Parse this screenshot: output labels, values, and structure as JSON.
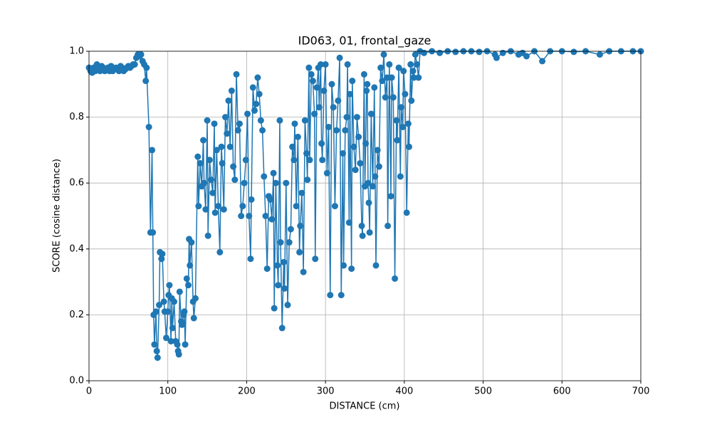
{
  "chart_data": {
    "type": "line",
    "title": "ID063, 01, frontal_gaze",
    "xlabel": "DISTANCE (cm)",
    "ylabel": "SCORE (cosine distance)",
    "color": "#1f77b4",
    "grid": true,
    "markers": true,
    "xlim": [
      0,
      700
    ],
    "xticks": [
      0,
      100,
      200,
      300,
      400,
      500,
      600,
      700
    ],
    "ylim": [
      0,
      1
    ],
    "yticks": [
      {
        "value": 0,
        "label": "0.0"
      },
      0.2,
      0.4,
      0.6,
      0.8,
      {
        "value": 1,
        "label": "1.0"
      }
    ],
    "x": [
      0,
      2,
      4,
      6,
      8,
      10,
      12,
      14,
      16,
      18,
      20,
      22,
      24,
      26,
      28,
      30,
      32,
      34,
      36,
      38,
      40,
      42,
      44,
      46,
      48,
      50,
      52,
      54,
      56,
      58,
      60,
      62,
      64,
      66,
      68,
      70,
      72,
      73,
      76,
      78,
      80,
      81,
      82,
      83,
      85,
      86,
      87,
      89,
      90,
      92,
      93,
      95,
      96,
      98,
      100,
      101,
      102,
      104,
      105,
      106,
      108,
      110,
      112,
      113,
      114,
      115,
      117,
      118,
      120,
      121,
      122,
      124,
      126,
      127,
      128,
      130,
      132,
      133,
      135,
      138,
      139,
      141,
      143,
      145,
      146,
      148,
      150,
      151,
      153,
      155,
      157,
      159,
      160,
      162,
      164,
      166,
      168,
      169,
      171,
      173,
      175,
      177,
      179,
      181,
      183,
      185,
      187,
      189,
      191,
      193,
      195,
      197,
      199,
      201,
      203,
      205,
      206,
      208,
      210,
      212,
      214,
      216,
      218,
      220,
      222,
      224,
      226,
      228,
      230,
      232,
      234,
      235,
      237,
      239,
      240,
      242,
      243,
      245,
      247,
      248,
      250,
      252,
      254,
      256,
      258,
      260,
      261,
      263,
      265,
      267,
      268,
      270,
      272,
      274,
      276,
      277,
      279,
      280,
      282,
      284,
      286,
      287,
      289,
      291,
      292,
      294,
      295,
      296,
      298,
      300,
      302,
      304,
      306,
      308,
      310,
      312,
      314,
      316,
      318,
      320,
      322,
      323,
      325,
      327,
      328,
      330,
      331,
      333,
      334,
      336,
      338,
      340,
      342,
      344,
      346,
      347,
      349,
      350,
      351,
      352,
      353,
      354,
      355,
      356,
      358,
      360,
      362,
      363,
      364,
      366,
      368,
      370,
      372,
      374,
      376,
      378,
      379,
      381,
      383,
      384,
      386,
      388,
      390,
      391,
      393,
      395,
      396,
      398,
      399,
      401,
      403,
      405,
      406,
      408,
      409,
      411,
      412,
      414,
      416,
      418,
      420,
      425,
      435,
      445,
      455,
      465,
      475,
      485,
      495,
      505,
      515,
      517,
      525,
      535,
      545,
      550,
      555,
      565,
      575,
      585,
      600,
      615,
      630,
      648,
      660,
      675,
      690,
      700
    ],
    "values": [
      0.95,
      0.94,
      0.935,
      0.95,
      0.94,
      0.96,
      0.945,
      0.94,
      0.955,
      0.95,
      0.94,
      0.945,
      0.95,
      0.94,
      0.955,
      0.94,
      0.945,
      0.95,
      0.945,
      0.94,
      0.955,
      0.95,
      0.94,
      0.945,
      0.95,
      0.955,
      0.95,
      0.955,
      0.96,
      0.96,
      0.98,
      0.99,
      0.985,
      0.99,
      0.97,
      0.96,
      0.91,
      0.95,
      0.77,
      0.45,
      0.7,
      0.45,
      0.2,
      0.11,
      0.21,
      0.09,
      0.07,
      0.23,
      0.39,
      0.37,
      0.385,
      0.24,
      0.21,
      0.13,
      0.21,
      0.26,
      0.29,
      0.12,
      0.25,
      0.16,
      0.24,
      0.12,
      0.11,
      0.09,
      0.08,
      0.27,
      0.18,
      0.17,
      0.2,
      0.21,
      0.11,
      0.31,
      0.29,
      0.43,
      0.35,
      0.42,
      0.24,
      0.19,
      0.25,
      0.68,
      0.53,
      0.66,
      0.59,
      0.73,
      0.6,
      0.52,
      0.79,
      0.44,
      0.67,
      0.61,
      0.57,
      0.78,
      0.51,
      0.7,
      0.53,
      0.39,
      0.71,
      0.66,
      0.52,
      0.8,
      0.75,
      0.85,
      0.71,
      0.88,
      0.65,
      0.61,
      0.93,
      0.76,
      0.78,
      0.5,
      0.53,
      0.6,
      0.67,
      0.81,
      0.5,
      0.37,
      0.55,
      0.89,
      0.82,
      0.84,
      0.92,
      0.87,
      0.79,
      0.76,
      0.62,
      0.5,
      0.34,
      0.56,
      0.55,
      0.49,
      0.63,
      0.22,
      0.6,
      0.35,
      0.29,
      0.79,
      0.42,
      0.16,
      0.36,
      0.28,
      0.6,
      0.23,
      0.42,
      0.46,
      0.71,
      0.67,
      0.78,
      0.53,
      0.74,
      0.39,
      0.47,
      0.57,
      0.33,
      0.79,
      0.69,
      0.61,
      0.95,
      0.67,
      0.93,
      0.91,
      0.81,
      0.37,
      0.89,
      0.95,
      0.83,
      0.96,
      0.72,
      0.67,
      0.88,
      0.96,
      0.63,
      0.77,
      0.26,
      0.9,
      0.83,
      0.53,
      0.76,
      0.85,
      0.98,
      0.26,
      0.69,
      0.35,
      0.76,
      0.8,
      0.96,
      0.48,
      0.87,
      0.34,
      0.91,
      0.71,
      0.64,
      0.8,
      0.74,
      0.66,
      0.47,
      0.44,
      0.93,
      0.59,
      0.72,
      0.88,
      0.9,
      0.6,
      0.54,
      0.45,
      0.81,
      0.59,
      0.89,
      0.62,
      0.35,
      0.7,
      0.65,
      0.95,
      0.91,
      0.99,
      0.86,
      0.92,
      0.47,
      0.96,
      0.56,
      0.92,
      0.86,
      0.31,
      0.79,
      0.73,
      0.95,
      0.62,
      0.83,
      0.77,
      0.94,
      0.87,
      0.51,
      0.78,
      0.71,
      0.96,
      0.85,
      0.94,
      0.92,
      0.99,
      0.96,
      0.92,
      1.0,
      0.995,
      1.0,
      0.995,
      1.0,
      0.998,
      1.0,
      1.0,
      0.998,
      1.0,
      0.99,
      0.98,
      0.995,
      1.0,
      0.99,
      0.995,
      0.985,
      1.0,
      0.97,
      1.0,
      1.0,
      0.998,
      1.0,
      0.99,
      1.0,
      1.0,
      1.0,
      1.0
    ]
  }
}
